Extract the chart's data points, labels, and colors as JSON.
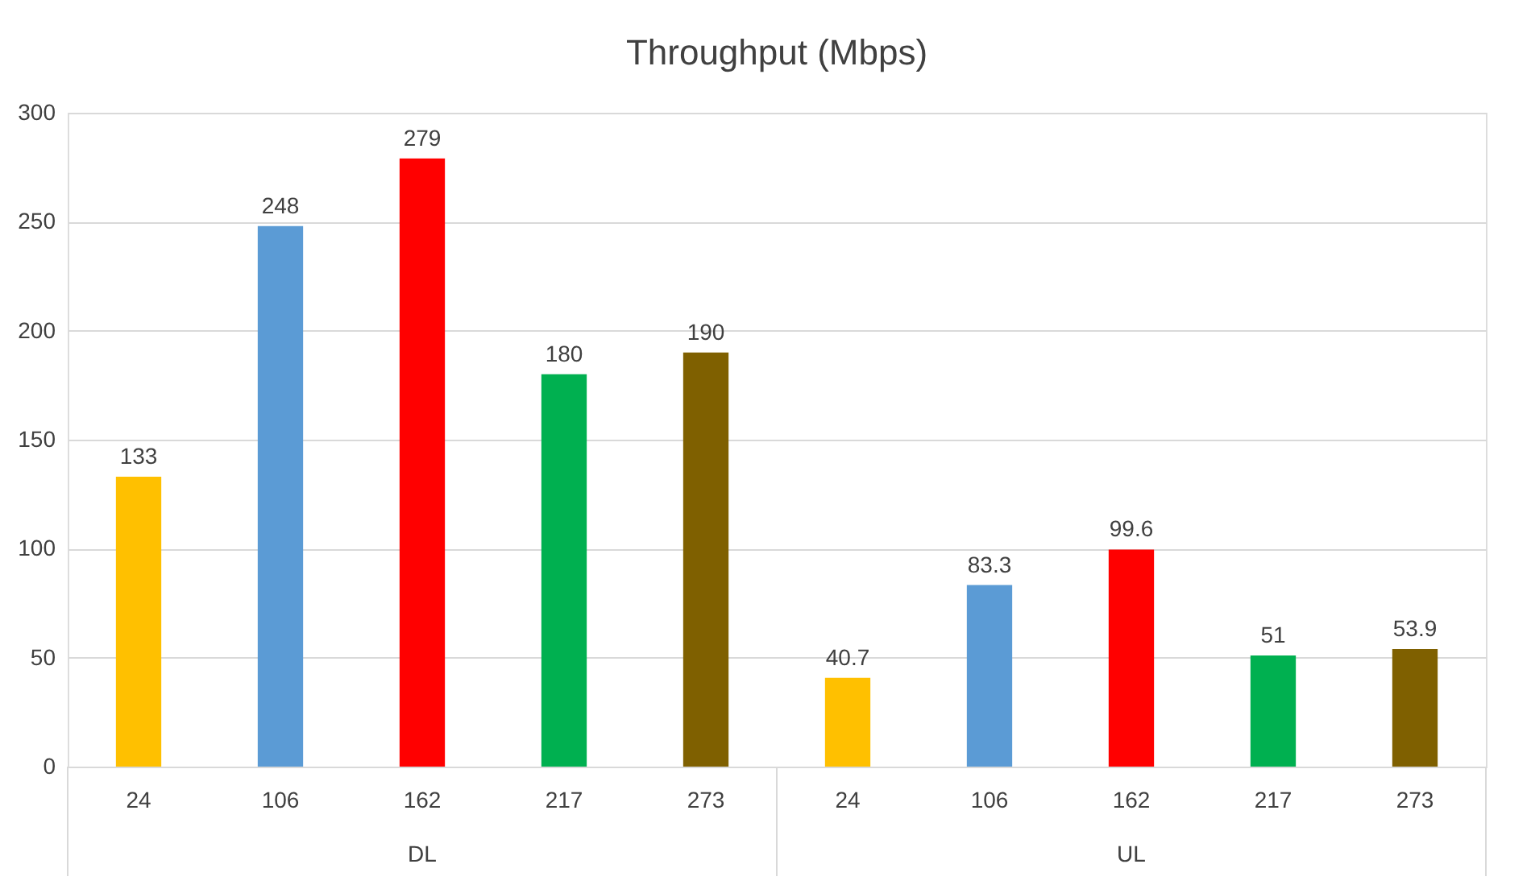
{
  "chart_data": {
    "type": "bar",
    "title": "Throughput (Mbps)",
    "categories": [
      "24",
      "106",
      "162",
      "217",
      "273",
      "24",
      "106",
      "162",
      "217",
      "273"
    ],
    "values": [
      133,
      248,
      279,
      180,
      190,
      40.7,
      83.3,
      99.6,
      51,
      53.9
    ],
    "colors": [
      "#ffc000",
      "#5b9bd5",
      "#ff0000",
      "#00b050",
      "#7f6000",
      "#ffc000",
      "#5b9bd5",
      "#ff0000",
      "#00b050",
      "#7f6000"
    ],
    "annotations": [
      "DL",
      "UL"
    ],
    "ylim": [
      0,
      300
    ],
    "yticks": [
      0,
      50,
      100,
      150,
      200,
      250,
      300
    ],
    "grid": "y",
    "data_labels": true
  }
}
